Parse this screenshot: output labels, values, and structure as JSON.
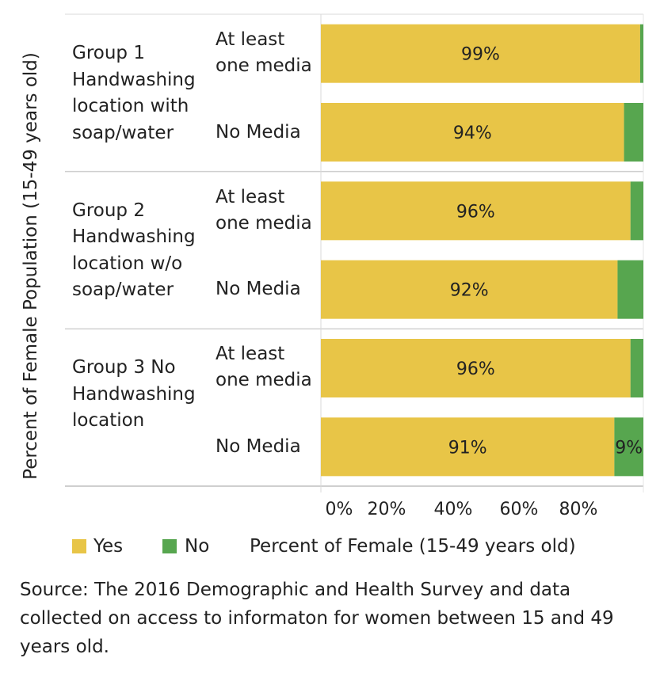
{
  "chart_data": {
    "type": "bar",
    "orientation": "horizontal",
    "stacked": true,
    "ylabel": "Percent of Female Population (15-49 years old)",
    "xlabel": "Percent of Female (15-49 years old)",
    "x_ticks": [
      "0%",
      "20%",
      "40%",
      "60%",
      "80%"
    ],
    "xlim": [
      0,
      100
    ],
    "groups": [
      {
        "label": "Group 1 Handwashing location with soap/water",
        "lines": [
          "Group 1",
          "Handwashing",
          "location with",
          "soap/water"
        ],
        "rows": [
          {
            "label": "At least one media",
            "lines": [
              "At least",
              "one media"
            ],
            "yes": 99,
            "no": 1,
            "yes_label": "99%",
            "no_label": ""
          },
          {
            "label": "No Media",
            "lines": [
              "No Media"
            ],
            "yes": 94,
            "no": 6,
            "yes_label": "94%",
            "no_label": ""
          }
        ]
      },
      {
        "label": "Group 2 Handwashing location w/o soap/water",
        "lines": [
          "Group 2",
          "Handwashing",
          "location w/o",
          "soap/water"
        ],
        "rows": [
          {
            "label": "At least one media",
            "lines": [
              "At least",
              "one media"
            ],
            "yes": 96,
            "no": 4,
            "yes_label": "96%",
            "no_label": ""
          },
          {
            "label": "No Media",
            "lines": [
              "No Media"
            ],
            "yes": 92,
            "no": 8,
            "yes_label": "92%",
            "no_label": ""
          }
        ]
      },
      {
        "label": "Group 3 No Handwashing location",
        "lines": [
          "Group 3 No",
          "Handwashing",
          "location"
        ],
        "rows": [
          {
            "label": "At least one media",
            "lines": [
              "At least",
              "one media"
            ],
            "yes": 96,
            "no": 4,
            "yes_label": "96%",
            "no_label": ""
          },
          {
            "label": "No Media",
            "lines": [
              "No Media"
            ],
            "yes": 91,
            "no": 9,
            "yes_label": "91%",
            "no_label": "9%"
          }
        ]
      }
    ],
    "series": [
      {
        "name": "Yes",
        "color": "#e8c547"
      },
      {
        "name": "No",
        "color": "#57a64f"
      }
    ],
    "legend_position": "bottom-left"
  },
  "legend": {
    "yes": "Yes",
    "no": "No",
    "axis_title": "Percent of Female (15-49 years old)"
  },
  "source": "Source: The 2016 Demographic and Health Survey and data collected on access to informaton for women between 15 and 49 years old."
}
